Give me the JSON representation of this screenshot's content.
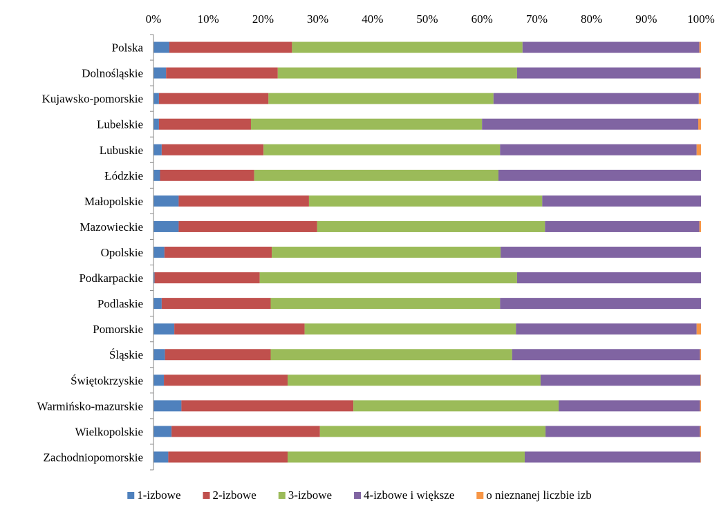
{
  "chart_data": {
    "type": "bar",
    "orientation": "horizontal",
    "stacked": "percent",
    "title": "",
    "xlabel": "",
    "ylabel": "",
    "xlim": [
      0,
      100
    ],
    "x_ticks": [
      "0%",
      "10%",
      "20%",
      "30%",
      "40%",
      "50%",
      "60%",
      "70%",
      "80%",
      "90%",
      "100%"
    ],
    "grid": false,
    "legend_position": "bottom",
    "categories": [
      "Polska",
      "Dolnośląskie",
      "Kujawsko-pomorskie",
      "Lubelskie",
      "Lubuskie",
      "Łódzkie",
      "Małopolskie",
      "Mazowieckie",
      "Opolskie",
      "Podkarpackie",
      "Podlaskie",
      "Pomorskie",
      "Śląskie",
      "Świętokrzyskie",
      "Warmińsko-mazurskie",
      "Wielkopolskie",
      "Zachodniopomorskie"
    ],
    "series": [
      {
        "name": "1-izbowe",
        "color": "#4F81BD",
        "values": [
          2.9,
          2.3,
          1.0,
          1.0,
          1.5,
          1.2,
          4.6,
          4.6,
          2.0,
          0.2,
          1.5,
          3.8,
          2.1,
          1.9,
          5.1,
          3.3,
          2.7
        ]
      },
      {
        "name": "2-izbowe",
        "color": "#C0504D",
        "values": [
          22.4,
          20.4,
          20.0,
          16.8,
          18.6,
          17.2,
          23.8,
          25.3,
          19.6,
          19.2,
          19.9,
          23.8,
          19.3,
          22.6,
          31.4,
          27.1,
          21.8
        ]
      },
      {
        "name": "3-izbowe",
        "color": "#9BBB59",
        "values": [
          42.1,
          43.7,
          41.1,
          42.2,
          43.2,
          44.6,
          42.6,
          41.6,
          41.8,
          47.0,
          41.9,
          38.6,
          44.1,
          46.2,
          37.5,
          41.2,
          43.3
        ]
      },
      {
        "name": "4-izbowe i większe",
        "color": "#8064A2",
        "values": [
          32.3,
          33.5,
          37.5,
          39.5,
          35.9,
          37.0,
          29.0,
          28.2,
          36.6,
          33.6,
          36.7,
          33.0,
          34.3,
          29.2,
          25.8,
          28.2,
          32.1
        ]
      },
      {
        "name": "o nieznanej liczbie izb",
        "color": "#F79646",
        "values": [
          0.3,
          0.1,
          0.4,
          0.5,
          0.8,
          0.0,
          0.0,
          0.3,
          0.0,
          0.0,
          0.0,
          0.8,
          0.2,
          0.1,
          0.2,
          0.2,
          0.1
        ]
      }
    ]
  }
}
